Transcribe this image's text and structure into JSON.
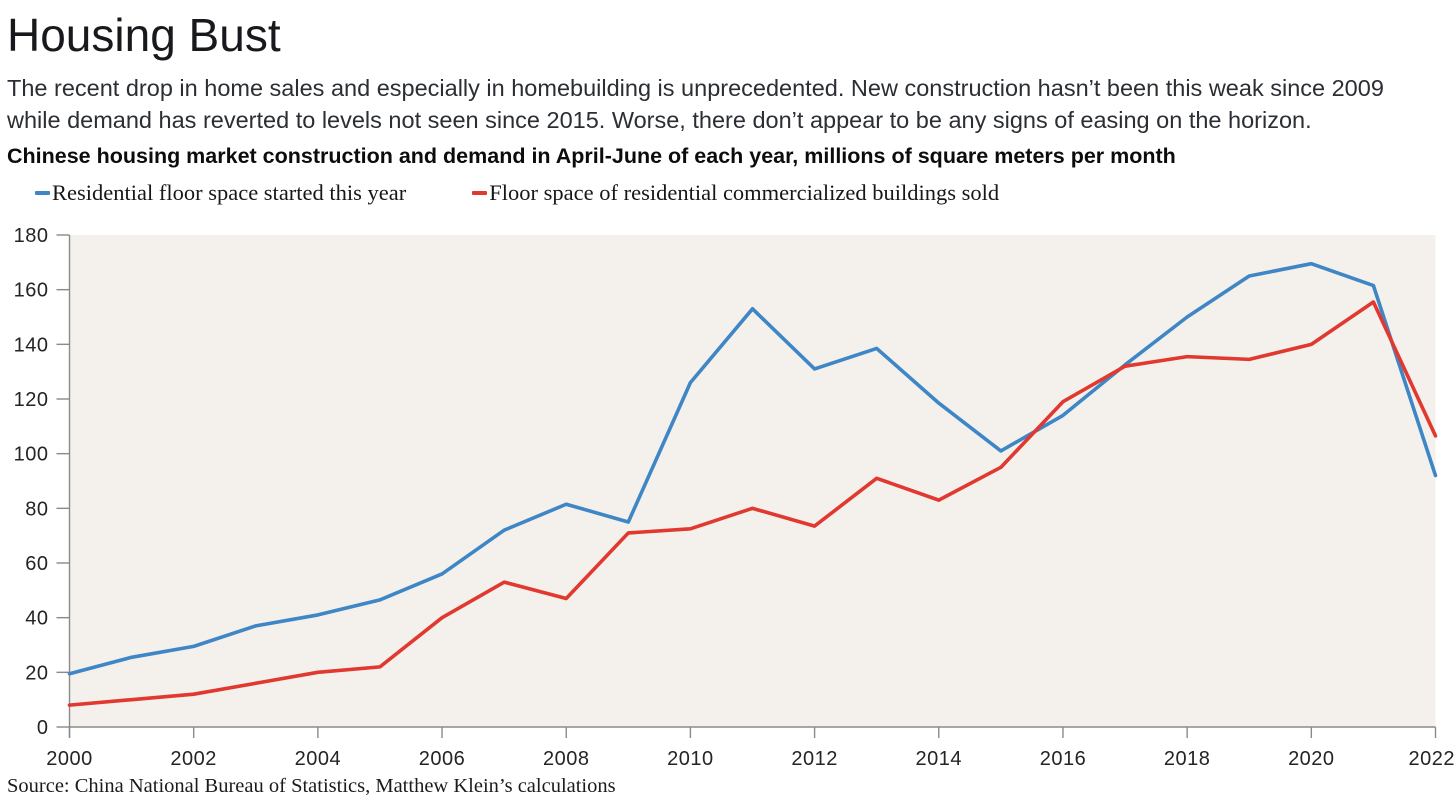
{
  "page": {
    "title": "Housing Bust",
    "description": "The recent drop in home sales and especially in homebuilding is unprecedented. New construction hasn’t been this weak since 2009 while demand has reverted to levels not seen since 2015. Worse, there don’t appear to be any signs of easing on the horizon.",
    "chart_heading": "Chinese housing market construction and demand in April-June of each year, millions of square meters per month",
    "source": "Source: China National Bureau of Statistics, Matthew Klein’s calculations"
  },
  "legend": {
    "items": [
      {
        "label": "Residential floor space started this year",
        "color": "#3e86c6"
      },
      {
        "label": "Floor space of residential commercialized buildings sold",
        "color": "#e1382f"
      }
    ]
  },
  "chart_data": {
    "type": "line",
    "title": "Chinese housing market construction and demand in April-June of each year, millions of square meters per month",
    "xlabel": "",
    "ylabel": "millions of square meters per month",
    "x": [
      2000,
      2001,
      2002,
      2003,
      2004,
      2005,
      2006,
      2007,
      2008,
      2009,
      2010,
      2011,
      2012,
      2013,
      2014,
      2015,
      2016,
      2017,
      2018,
      2019,
      2020,
      2021,
      2022
    ],
    "series": [
      {
        "name": "Residential floor space started this year",
        "color": "#3e86c6",
        "values": [
          19.5,
          25.5,
          29.5,
          37,
          41,
          46.5,
          56,
          72,
          81.5,
          75,
          126,
          153,
          131,
          138.5,
          118.5,
          101,
          114,
          132.5,
          150,
          165,
          169.5,
          161.5,
          92
        ]
      },
      {
        "name": "Floor space of residential commercialized buildings sold",
        "color": "#e1382f",
        "values": [
          8,
          10,
          12,
          16,
          20,
          22,
          40,
          53,
          47,
          71,
          72.5,
          80,
          73.5,
          91,
          83,
          95,
          119,
          132,
          135.5,
          134.5,
          140,
          155.5,
          106.5
        ]
      }
    ],
    "ylim": [
      0,
      180
    ],
    "yticks": [
      0,
      20,
      40,
      60,
      80,
      100,
      120,
      140,
      160,
      180
    ],
    "xticks": [
      2000,
      2002,
      2004,
      2006,
      2008,
      2010,
      2012,
      2014,
      2016,
      2018,
      2020,
      2022
    ],
    "grid": false,
    "legend_position": "top-left",
    "plot_background": "#f4f1ec",
    "axis_color": "#8a8a8a"
  }
}
